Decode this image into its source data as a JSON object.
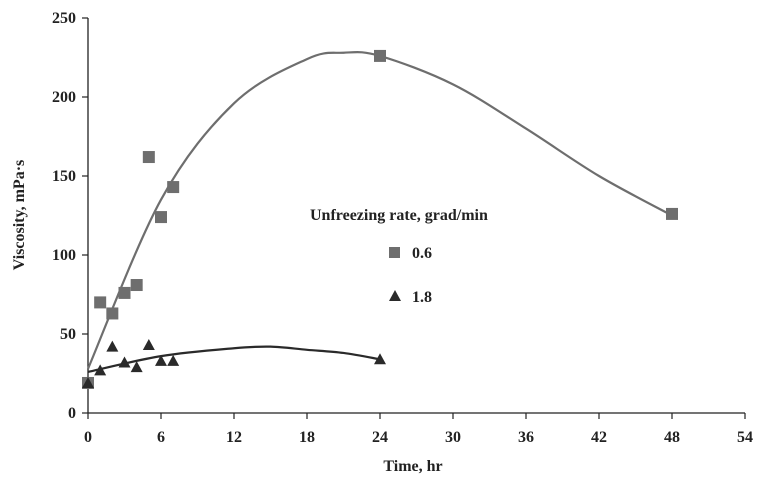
{
  "chart_data": {
    "type": "scatter",
    "title": "",
    "xlabel": "Time, hr",
    "ylabel": "Viscosity, mPa·s",
    "xlim": [
      0,
      54
    ],
    "ylim": [
      0,
      250
    ],
    "xticks": [
      "0",
      "6",
      "12",
      "18",
      "24",
      "30",
      "36",
      "42",
      "48",
      "54"
    ],
    "yticks": [
      "0",
      "50",
      "100",
      "150",
      "200",
      "250"
    ],
    "grid": false,
    "legend": {
      "title": "Unfreezing rate, grad/min",
      "placement": "center-right"
    },
    "series": [
      {
        "name": "0.6",
        "marker": "square",
        "color": "#6e6e6e",
        "points": [
          [
            0,
            19
          ],
          [
            1,
            70
          ],
          [
            2,
            63
          ],
          [
            3,
            76
          ],
          [
            4,
            81
          ],
          [
            5,
            162
          ],
          [
            6,
            124
          ],
          [
            7,
            143
          ],
          [
            24,
            226
          ],
          [
            48,
            126
          ]
        ],
        "trend": [
          [
            0,
            28
          ],
          [
            6,
            135
          ],
          [
            12,
            196
          ],
          [
            18,
            224
          ],
          [
            21,
            228
          ],
          [
            24,
            226
          ],
          [
            30,
            208
          ],
          [
            36,
            180
          ],
          [
            42,
            150
          ],
          [
            48,
            125
          ]
        ]
      },
      {
        "name": "1.8",
        "marker": "triangle",
        "color": "#2a2a2a",
        "points": [
          [
            0,
            19
          ],
          [
            1,
            27
          ],
          [
            2,
            42
          ],
          [
            3,
            32
          ],
          [
            4,
            29
          ],
          [
            5,
            43
          ],
          [
            6,
            33
          ],
          [
            7,
            33
          ],
          [
            24,
            34
          ]
        ],
        "trend": [
          [
            0,
            26
          ],
          [
            6,
            36
          ],
          [
            12,
            41
          ],
          [
            15,
            42
          ],
          [
            18,
            40
          ],
          [
            21,
            38
          ],
          [
            24,
            34
          ]
        ]
      }
    ]
  }
}
